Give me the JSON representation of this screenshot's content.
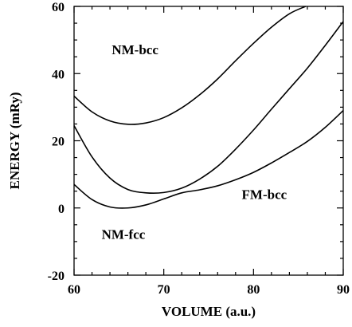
{
  "chart_data": {
    "type": "line",
    "xlabel": "VOLUME (a.u.)",
    "ylabel": "ENERGY (mRy)",
    "xlim": [
      60,
      90
    ],
    "ylim": [
      -20,
      60
    ],
    "xticks": [
      60,
      70,
      80,
      90
    ],
    "yticks": [
      -20,
      0,
      20,
      40,
      60
    ],
    "grid": false,
    "series": [
      {
        "name": "NM-bcc",
        "x": [
          60,
          62,
          64,
          66,
          68,
          70,
          72,
          74,
          76,
          78,
          80,
          82,
          84,
          85.8
        ],
        "y": [
          33.3,
          28.6,
          25.9,
          24.9,
          25.3,
          26.9,
          29.8,
          33.7,
          38.4,
          43.8,
          49.0,
          53.8,
          57.8,
          60.0
        ]
      },
      {
        "name": "NM-fcc",
        "x": [
          60,
          62,
          64,
          66,
          68,
          70,
          72,
          74,
          76,
          78,
          80,
          82,
          84,
          86,
          88,
          90
        ],
        "y": [
          24.5,
          15.2,
          8.9,
          5.5,
          4.5,
          4.6,
          5.9,
          8.6,
          12.4,
          17.5,
          23.2,
          29.4,
          35.5,
          41.6,
          48.4,
          55.5
        ]
      },
      {
        "name": "FM-bcc",
        "x": [
          60,
          62,
          64,
          66,
          68,
          70,
          72,
          74,
          76,
          78,
          80,
          82,
          84,
          86,
          88,
          90
        ],
        "y": [
          7.0,
          2.5,
          0.3,
          0.0,
          0.9,
          2.7,
          4.5,
          5.4,
          6.6,
          8.4,
          10.6,
          13.4,
          16.5,
          19.8,
          24.0,
          29.0
        ]
      }
    ],
    "annotations": [
      {
        "text": "NM-bcc",
        "x": 66.8,
        "y": 45.7
      },
      {
        "text": "FM-bcc",
        "x": 81.2,
        "y": 2.7
      },
      {
        "text": "NM-fcc",
        "x": 65.5,
        "y": -9.2
      }
    ]
  }
}
